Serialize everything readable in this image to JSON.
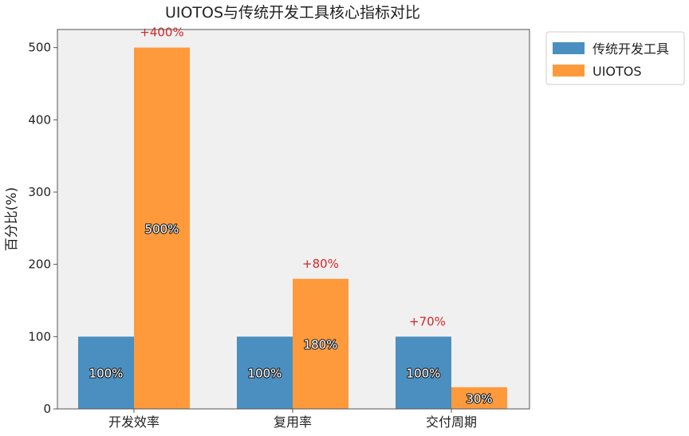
{
  "chart_data": {
    "type": "bar",
    "title": "UIOTOS与传统开发工具核心指标对比",
    "xlabel": "",
    "ylabel": "百分比(%)",
    "categories": [
      "开发效率",
      "复用率",
      "交付周期"
    ],
    "ylim": [
      0,
      525
    ],
    "yticks": [
      "0",
      "100",
      "200",
      "300",
      "400",
      "500"
    ],
    "series": [
      {
        "name": "传统开发工具",
        "color": "#4a8fc0",
        "values": [
          100,
          100,
          100
        ],
        "labels": [
          "100%",
          "100%",
          "100%"
        ]
      },
      {
        "name": "UIOTOS",
        "color": "#ff9a3c",
        "values": [
          500,
          180,
          30
        ],
        "labels": [
          "500%",
          "180%",
          "30%"
        ]
      }
    ],
    "annotations": [
      "+400%",
      "+80%",
      "+70%"
    ],
    "annotation_color": "#d62728",
    "plot_background": "#f0f0f0",
    "grid": false,
    "legend_position": "outside-right-top"
  }
}
